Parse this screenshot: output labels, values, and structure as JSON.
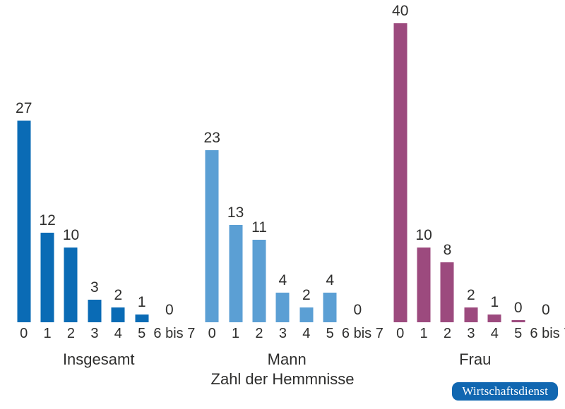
{
  "chart_data": {
    "type": "bar",
    "title": "",
    "xlabel": "Zahl der Hemmnisse",
    "ylabel": "",
    "categories": [
      "0",
      "1",
      "2",
      "3",
      "4",
      "5",
      "6 bis 7"
    ],
    "groups": [
      {
        "name": "Insgesamt",
        "color": "#0a6bb5",
        "values": [
          27,
          12,
          10,
          3,
          2,
          1,
          0
        ],
        "bar_units": [
          27,
          12,
          10,
          3,
          2,
          1,
          0
        ]
      },
      {
        "name": "Mann",
        "color": "#5b9fd4",
        "values": [
          23,
          13,
          11,
          4,
          2,
          4,
          0
        ],
        "bar_units": [
          23,
          13,
          11,
          4,
          2,
          4,
          0
        ]
      },
      {
        "name": "Frau",
        "color": "#9c4a7e",
        "values": [
          40,
          10,
          8,
          2,
          1,
          0,
          0
        ],
        "bar_units": [
          40,
          10,
          8,
          2,
          1,
          0.25,
          0
        ]
      }
    ],
    "ylim": [
      0,
      40
    ],
    "grid": false,
    "legend": false,
    "value_labels_shown": true
  },
  "text_color": "#2e2e2d",
  "source_badge": {
    "label": "Wirtschaftsdienst",
    "bg": "#1167b1",
    "text_color": "#ffffff"
  }
}
